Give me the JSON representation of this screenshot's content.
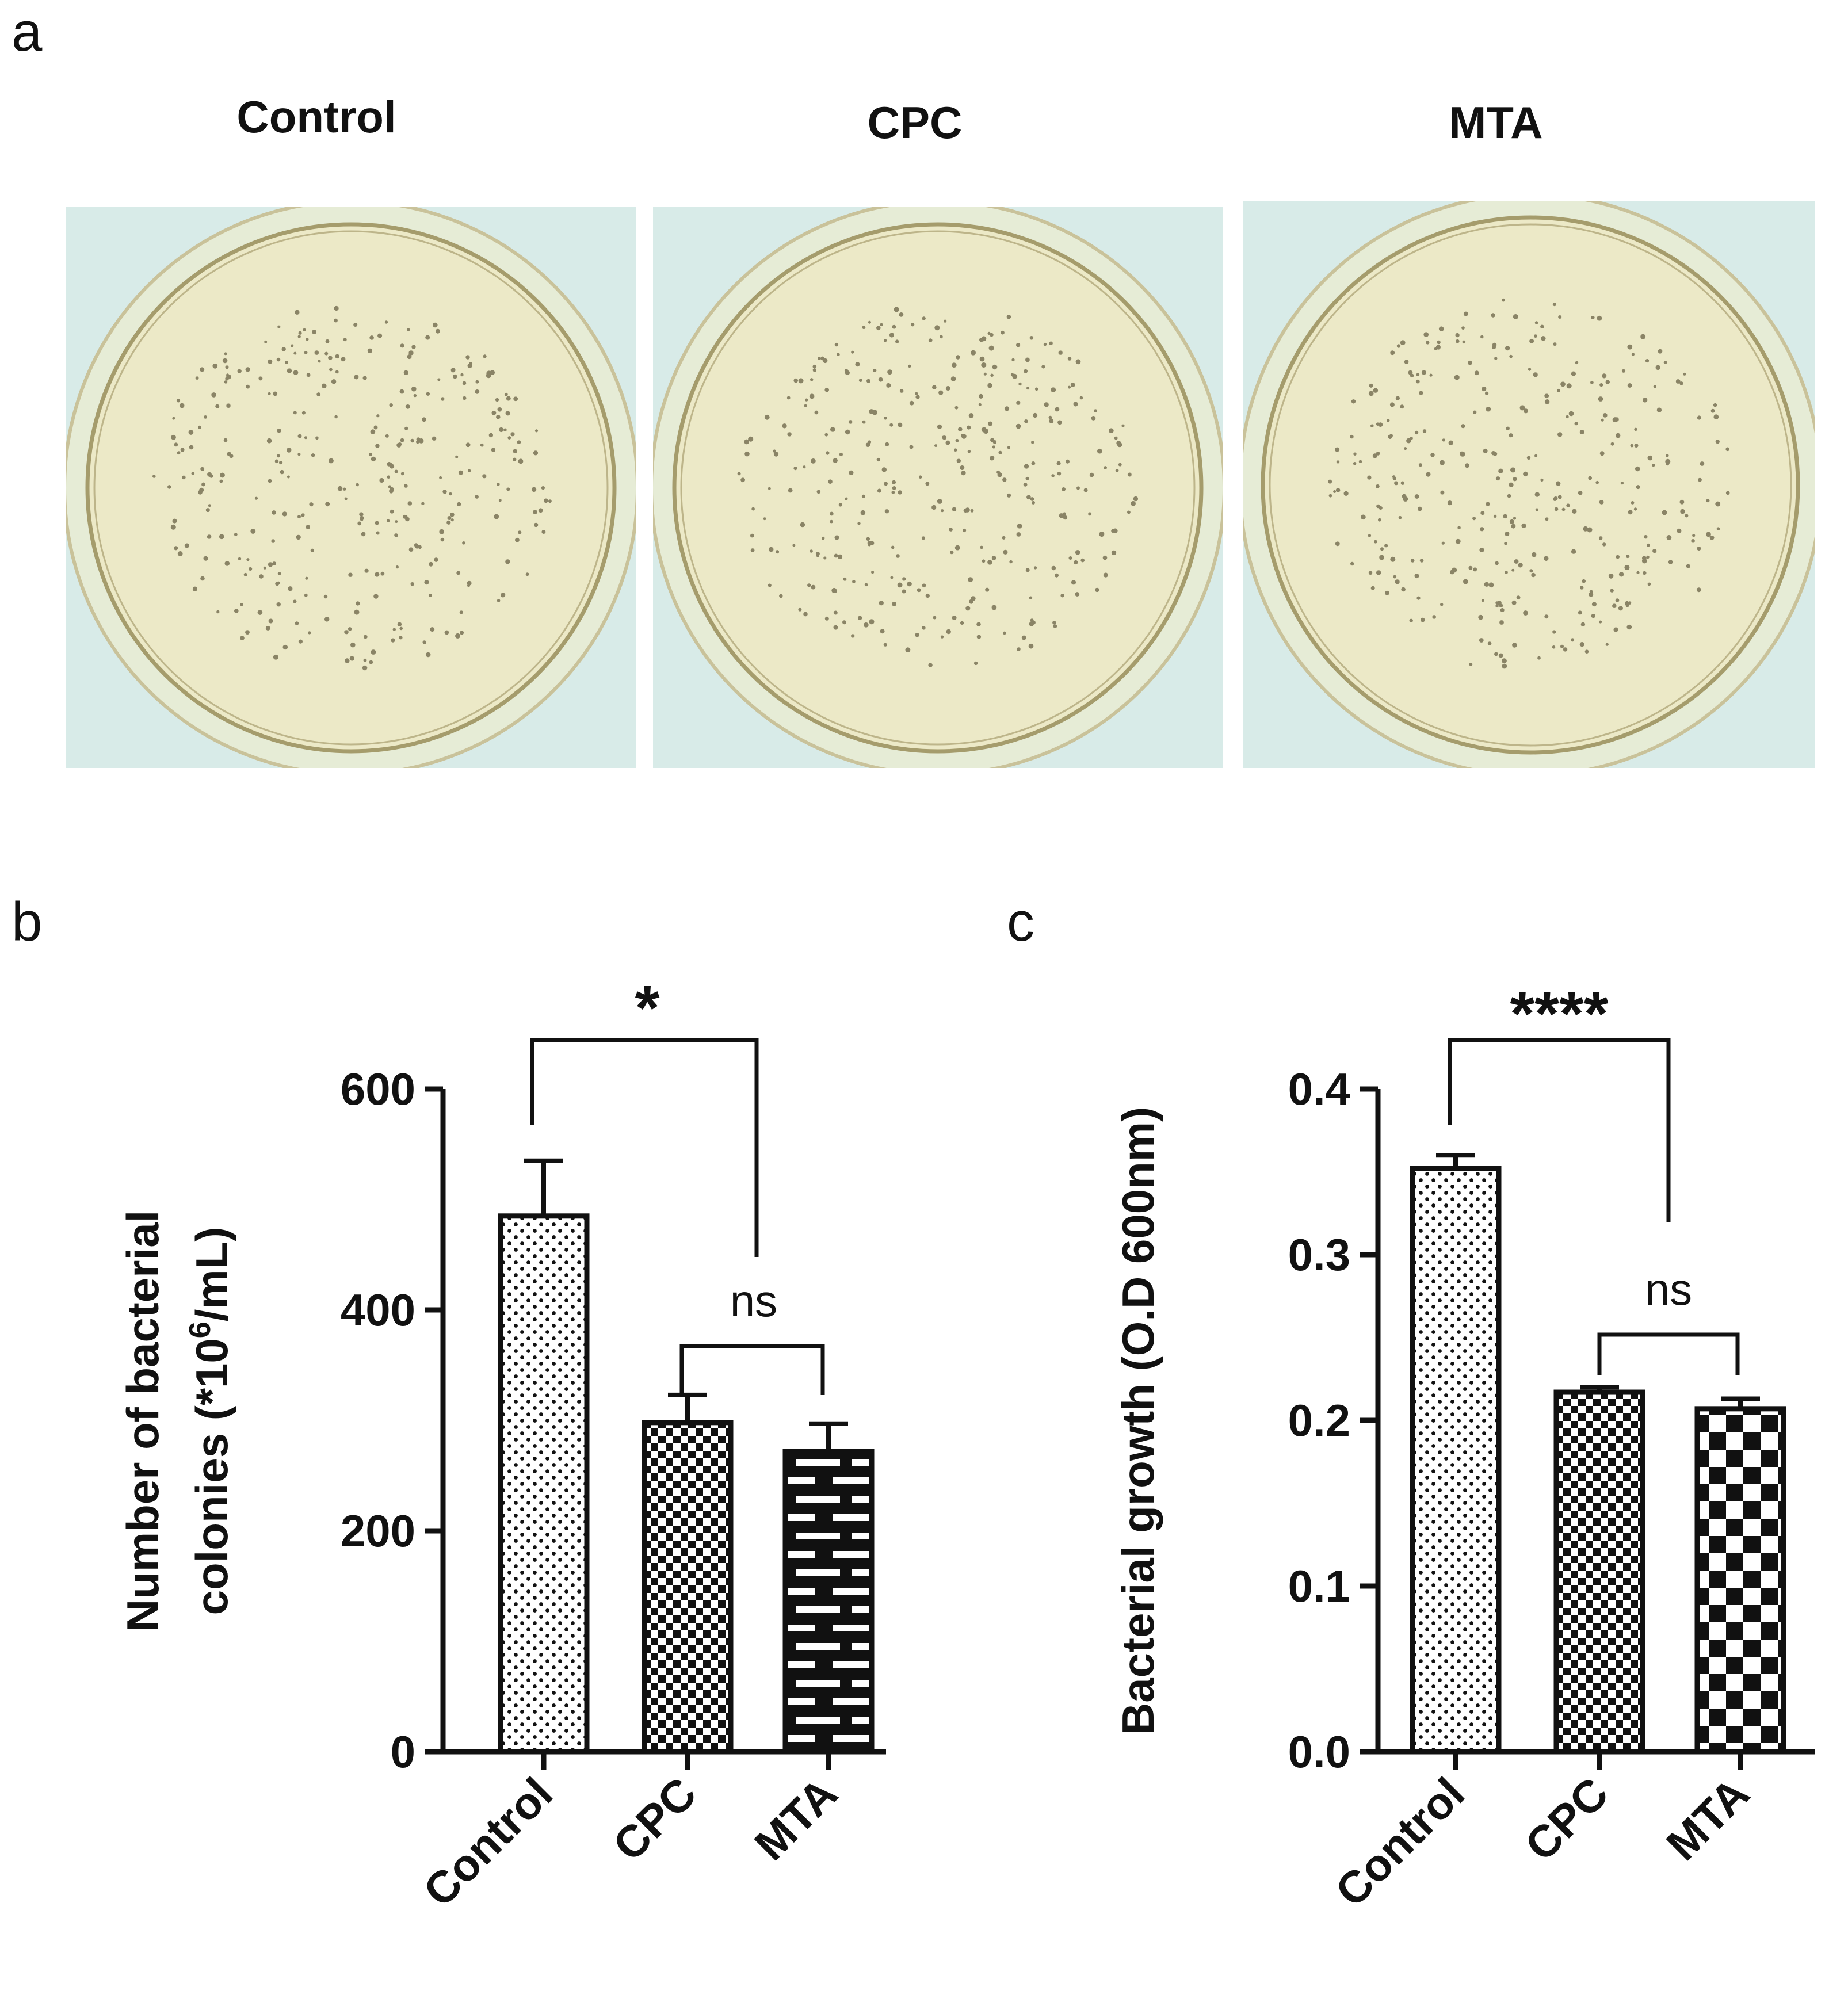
{
  "panels": {
    "a": "a",
    "b": "b",
    "c": "c"
  },
  "plates": [
    {
      "label": "Control"
    },
    {
      "label": "CPC"
    },
    {
      "label": "MTA"
    }
  ],
  "colors": {
    "plate_background": "#d8ebe8",
    "agar": "#ece9c7",
    "plate_rim": "#c9c29a",
    "colony": "#8a8466",
    "bar_stroke": "#111111"
  },
  "chart_data": [
    {
      "type": "bar",
      "panel": "b",
      "categories": [
        "Control",
        "CPC",
        "MTA"
      ],
      "values": [
        485,
        298,
        272
      ],
      "errors": [
        50,
        25,
        25
      ],
      "patterns": [
        "dots",
        "checker-small",
        "brick"
      ],
      "ylim": [
        0,
        600
      ],
      "yticks": [
        "0",
        "200",
        "400",
        "600"
      ],
      "ylabel_line1": "Number of bacterial",
      "ylabel_line2_prefix": "colonies (*10",
      "ylabel_superscript": "6",
      "ylabel_line2_suffix": "/mL)",
      "xlabel": "",
      "grid": false,
      "significance": [
        {
          "between": [
            "Control",
            "MTA"
          ],
          "label": "*"
        },
        {
          "between": [
            "CPC",
            "MTA"
          ],
          "label": "ns"
        }
      ]
    },
    {
      "type": "bar",
      "panel": "c",
      "categories": [
        "Control",
        "CPC",
        "MTA"
      ],
      "values": [
        0.352,
        0.217,
        0.207
      ],
      "errors": [
        0.008,
        0.003,
        0.006
      ],
      "patterns": [
        "dots",
        "checker-small",
        "checker-large"
      ],
      "ylim": [
        0,
        0.4
      ],
      "yticks": [
        "0.0",
        "0.1",
        "0.2",
        "0.3",
        "0.4"
      ],
      "ylabel": "Bacterial growth (O.D 600nm)",
      "xlabel": "",
      "grid": false,
      "significance": [
        {
          "between": [
            "Control",
            "MTA"
          ],
          "label": "****"
        },
        {
          "between": [
            "CPC",
            "MTA"
          ],
          "label": "ns"
        }
      ]
    }
  ]
}
